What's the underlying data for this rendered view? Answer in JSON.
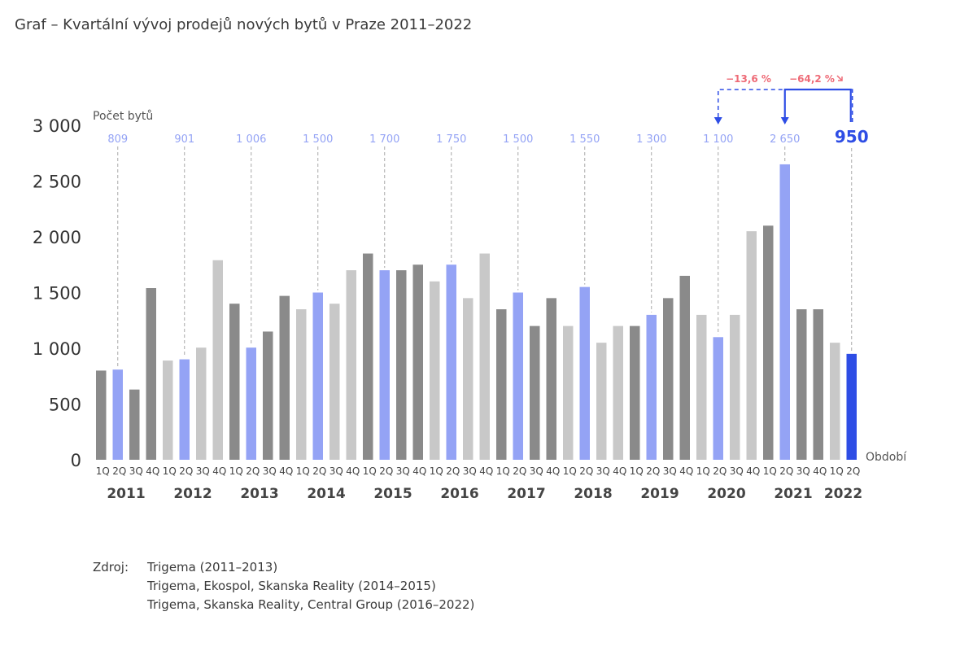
{
  "title": "Graf – Kvartální vývoj prodejů nových bytů v Praze 2011–2022",
  "chart_data": {
    "type": "bar",
    "ylabel": "Počet bytů",
    "xlabel": "Období",
    "ylim": [
      0,
      3000
    ],
    "yticks": [
      "0",
      "500",
      "1 000",
      "1 500",
      "2 000",
      "2 500",
      "3 000"
    ],
    "ytick_values": [
      0,
      500,
      1000,
      1500,
      2000,
      2500,
      3000
    ],
    "quarter_labels": [
      "1Q",
      "2Q",
      "3Q",
      "4Q"
    ],
    "years": [
      "2011",
      "2012",
      "2013",
      "2014",
      "2015",
      "2016",
      "2017",
      "2018",
      "2019",
      "2020",
      "2021",
      "2022"
    ],
    "values": [
      800,
      809,
      630,
      1540,
      890,
      901,
      1006,
      1790,
      1400,
      1006,
      1150,
      1470,
      1350,
      1500,
      1400,
      1700,
      1850,
      1700,
      1700,
      1750,
      1600,
      1750,
      1450,
      1850,
      1350,
      1500,
      1200,
      1450,
      1200,
      1550,
      1050,
      1200,
      1200,
      1300,
      1450,
      1650,
      1300,
      1100,
      1300,
      2050,
      2100,
      2650,
      1350,
      1350,
      1050,
      950
    ],
    "highlight_labels": [
      "809",
      "901",
      "1 006",
      "1 500",
      "1 700",
      "1 750",
      "1 500",
      "1 550",
      "1 300",
      "1 100",
      "2 650",
      "950"
    ],
    "annotations": [
      "−13,6 %",
      "−64,2 %"
    ],
    "colors": {
      "dark": "#8a8a8a",
      "light": "#c8c8c8",
      "highlight": "#94a3f5",
      "current": "#2e4de5",
      "annotation": "#ee6b77",
      "axis": "#333333",
      "guide": "#a8a8a8"
    }
  },
  "source": {
    "label": "Zdroj:",
    "lines": [
      "Trigema (2011–2013)",
      "Trigema, Ekospol, Skanska Reality (2014–2015)",
      "Trigema, Skanska Reality, Central Group (2016–2022)"
    ]
  }
}
